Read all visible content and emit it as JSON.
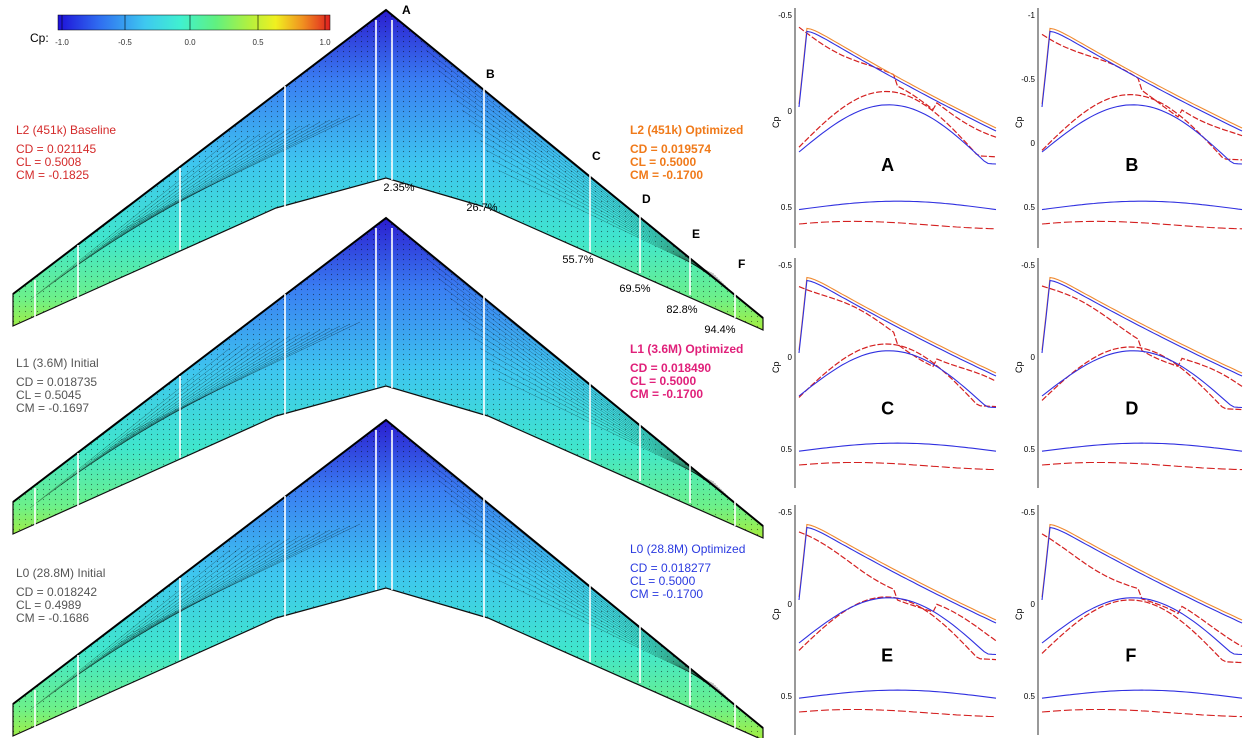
{
  "colorbar": {
    "label": "Cp:",
    "ticks": [
      "-1.0",
      "-0.5",
      "0.0",
      "0.5",
      "1.0"
    ],
    "stops": [
      "#1e10d8",
      "#2f6cf0",
      "#3ec8f0",
      "#40f0d0",
      "#60f080",
      "#b0f040",
      "#f0f020",
      "#f09020",
      "#e02020"
    ]
  },
  "stations": [
    {
      "letter": "A",
      "pct": "2.35%"
    },
    {
      "letter": "B",
      "pct": "26.7%"
    },
    {
      "letter": "C",
      "pct": "55.7%"
    },
    {
      "letter": "D",
      "pct": "69.5%"
    },
    {
      "letter": "E",
      "pct": "82.8%"
    },
    {
      "letter": "F",
      "pct": "94.4%"
    }
  ],
  "cases": [
    {
      "left": {
        "title": "L2 (451k) Baseline",
        "cd": "CD = 0.021145",
        "cl": "CL = 0.5008",
        "cm": "CM = -0.1825",
        "color": "#d42a2a"
      },
      "right": {
        "title": "L2 (451k) Optimized",
        "cd": "CD = 0.019574",
        "cl": "CL = 0.5000",
        "cm": "CM = -0.1700",
        "color": "#f07a1a"
      }
    },
    {
      "left": {
        "title": "L1 (3.6M) Initial",
        "cd": "CD = 0.018735",
        "cl": "CL = 0.5045",
        "cm": "CM = -0.1697",
        "color": "#555555"
      },
      "right": {
        "title": "L1 (3.6M) Optimized",
        "cd": "CD = 0.018490",
        "cl": "CL = 0.5000",
        "cm": "CM = -0.1700",
        "color": "#e0207a"
      }
    },
    {
      "left": {
        "title": "L0 (28.8M) Initial",
        "cd": "CD = 0.018242",
        "cl": "CL = 0.4989",
        "cm": "CM = -0.1686",
        "color": "#555555"
      },
      "right": {
        "title": "L0 (28.8M) Optimized",
        "cd": "CD = 0.018277",
        "cl": "CL = 0.5000",
        "cm": "CM = -0.1700",
        "color": "#2a3ae0"
      }
    }
  ],
  "panels": {
    "ylabel": "Cp",
    "yticks": [
      "-0.5",
      "0",
      "0.5"
    ],
    "yticks_b": [
      "-1",
      "-0.5",
      "0",
      "0.5"
    ],
    "letters": [
      "A",
      "B",
      "C",
      "D",
      "E",
      "F"
    ]
  },
  "line_colors": {
    "blue": "#3030e0",
    "red": "#d42020",
    "orange": "#f08a30"
  }
}
